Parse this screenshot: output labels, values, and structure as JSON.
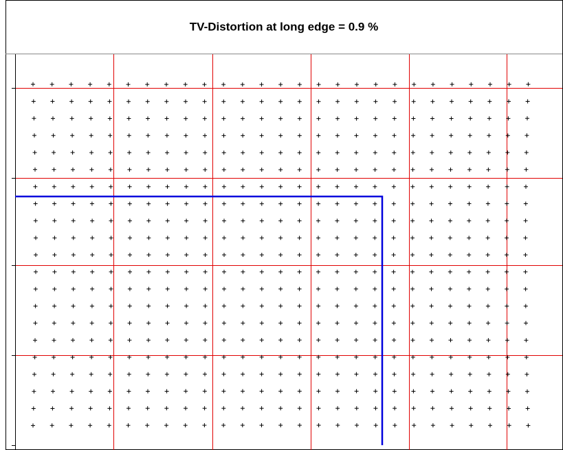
{
  "title": "TV-Distortion at long edge = 0.9 %"
}
